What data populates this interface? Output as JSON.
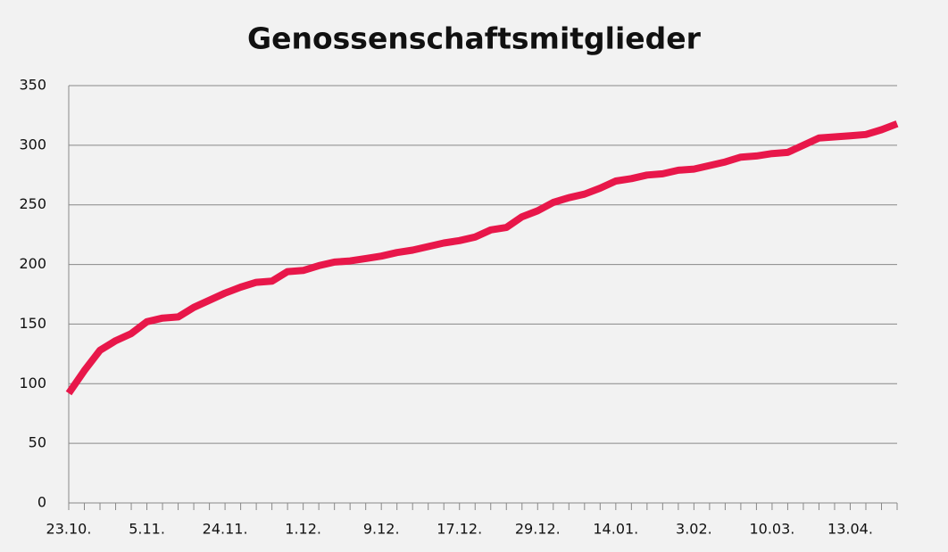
{
  "chart_data": {
    "type": "line",
    "title": "Genossenschaftsmitglieder",
    "categories": [
      "23.10.",
      null,
      null,
      null,
      null,
      "5.11.",
      null,
      null,
      null,
      null,
      "24.11.",
      null,
      null,
      null,
      null,
      "1.12.",
      null,
      null,
      null,
      null,
      "9.12.",
      null,
      null,
      null,
      null,
      "17.12.",
      null,
      null,
      null,
      null,
      "29.12.",
      null,
      null,
      null,
      null,
      "14.01.",
      null,
      null,
      null,
      null,
      "3.02.",
      null,
      null,
      null,
      null,
      "10.03.",
      null,
      null,
      null,
      null,
      "13.04.",
      null,
      null,
      null
    ],
    "series": [
      {
        "color": "#e8174a",
        "values": [
          92,
          111,
          128,
          136,
          142,
          152,
          155,
          156,
          164,
          170,
          176,
          181,
          185,
          186,
          194,
          195,
          199,
          202,
          203,
          205,
          207,
          210,
          212,
          215,
          218,
          220,
          223,
          229,
          231,
          240,
          245,
          252,
          256,
          259,
          264,
          270,
          272,
          275,
          276,
          279,
          280,
          283,
          286,
          290,
          291,
          293,
          294,
          300,
          306,
          307,
          308,
          309,
          313,
          318
        ]
      }
    ],
    "ylim": [
      0,
      350
    ],
    "yticks": [
      0,
      50,
      100,
      150,
      200,
      250,
      300,
      350
    ],
    "grid": true
  }
}
